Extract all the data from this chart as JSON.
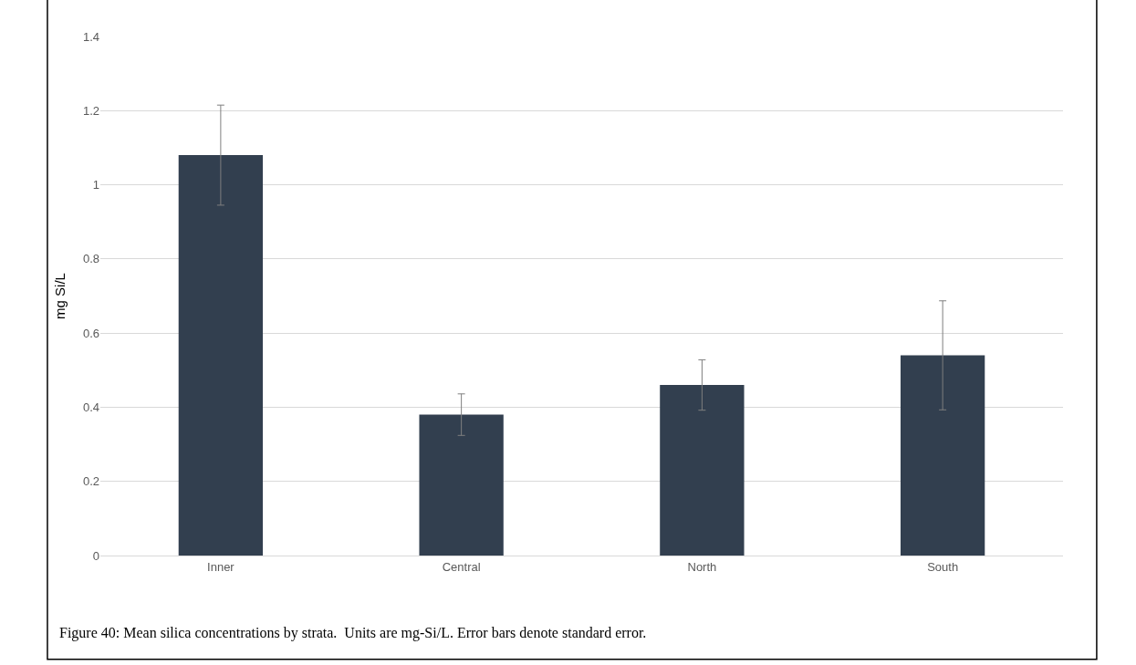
{
  "chart_data": {
    "type": "bar",
    "categories": [
      "Inner",
      "Central",
      "North",
      "South"
    ],
    "values": [
      1.08,
      0.38,
      0.46,
      0.54
    ],
    "errors": [
      0.135,
      0.056,
      0.068,
      0.147
    ],
    "color": "#323f4f",
    "ylabel": "mg Si/L",
    "ylim": [
      0,
      1.4
    ],
    "yticks": [
      0,
      0.2,
      0.4,
      0.6,
      0.8,
      1,
      1.2,
      1.4
    ],
    "grid": "y",
    "annotations": [
      "Figure 40: Mean silica concentrations by strata.  Units are mg-Si/L. Error bars denote standard error."
    ]
  }
}
